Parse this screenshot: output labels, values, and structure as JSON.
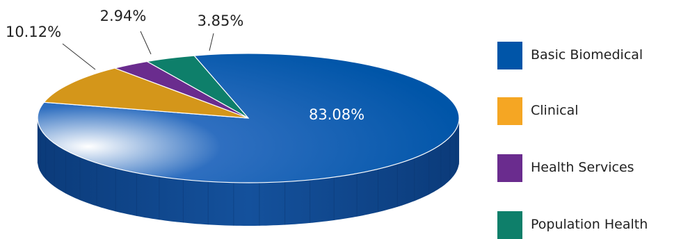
{
  "chart_data": {
    "type": "pie",
    "title": "",
    "slices": [
      {
        "label": "Basic Biomedical",
        "value": 83.08,
        "value_label": "83.08%",
        "color": "#0055A8"
      },
      {
        "label": "Clinical",
        "value": 10.12,
        "value_label": "10.12%",
        "color": "#D4961A"
      },
      {
        "label": "Health Services",
        "value": 2.94,
        "value_label": "2.94%",
        "color": "#6A2C8E"
      },
      {
        "label": "Population Health",
        "value": 3.85,
        "value_label": "3.85%",
        "color": "#0E7F6A"
      }
    ],
    "legend_position": "right",
    "style": "3d"
  },
  "legend": {
    "items": [
      {
        "label": "Basic Biomedical",
        "color": "#0055A8"
      },
      {
        "label": "Clinical",
        "color": "#F5A623"
      },
      {
        "label": "Health Services",
        "color": "#6A2C8E"
      },
      {
        "label": "Population Health",
        "color": "#0E7F6A"
      }
    ]
  }
}
